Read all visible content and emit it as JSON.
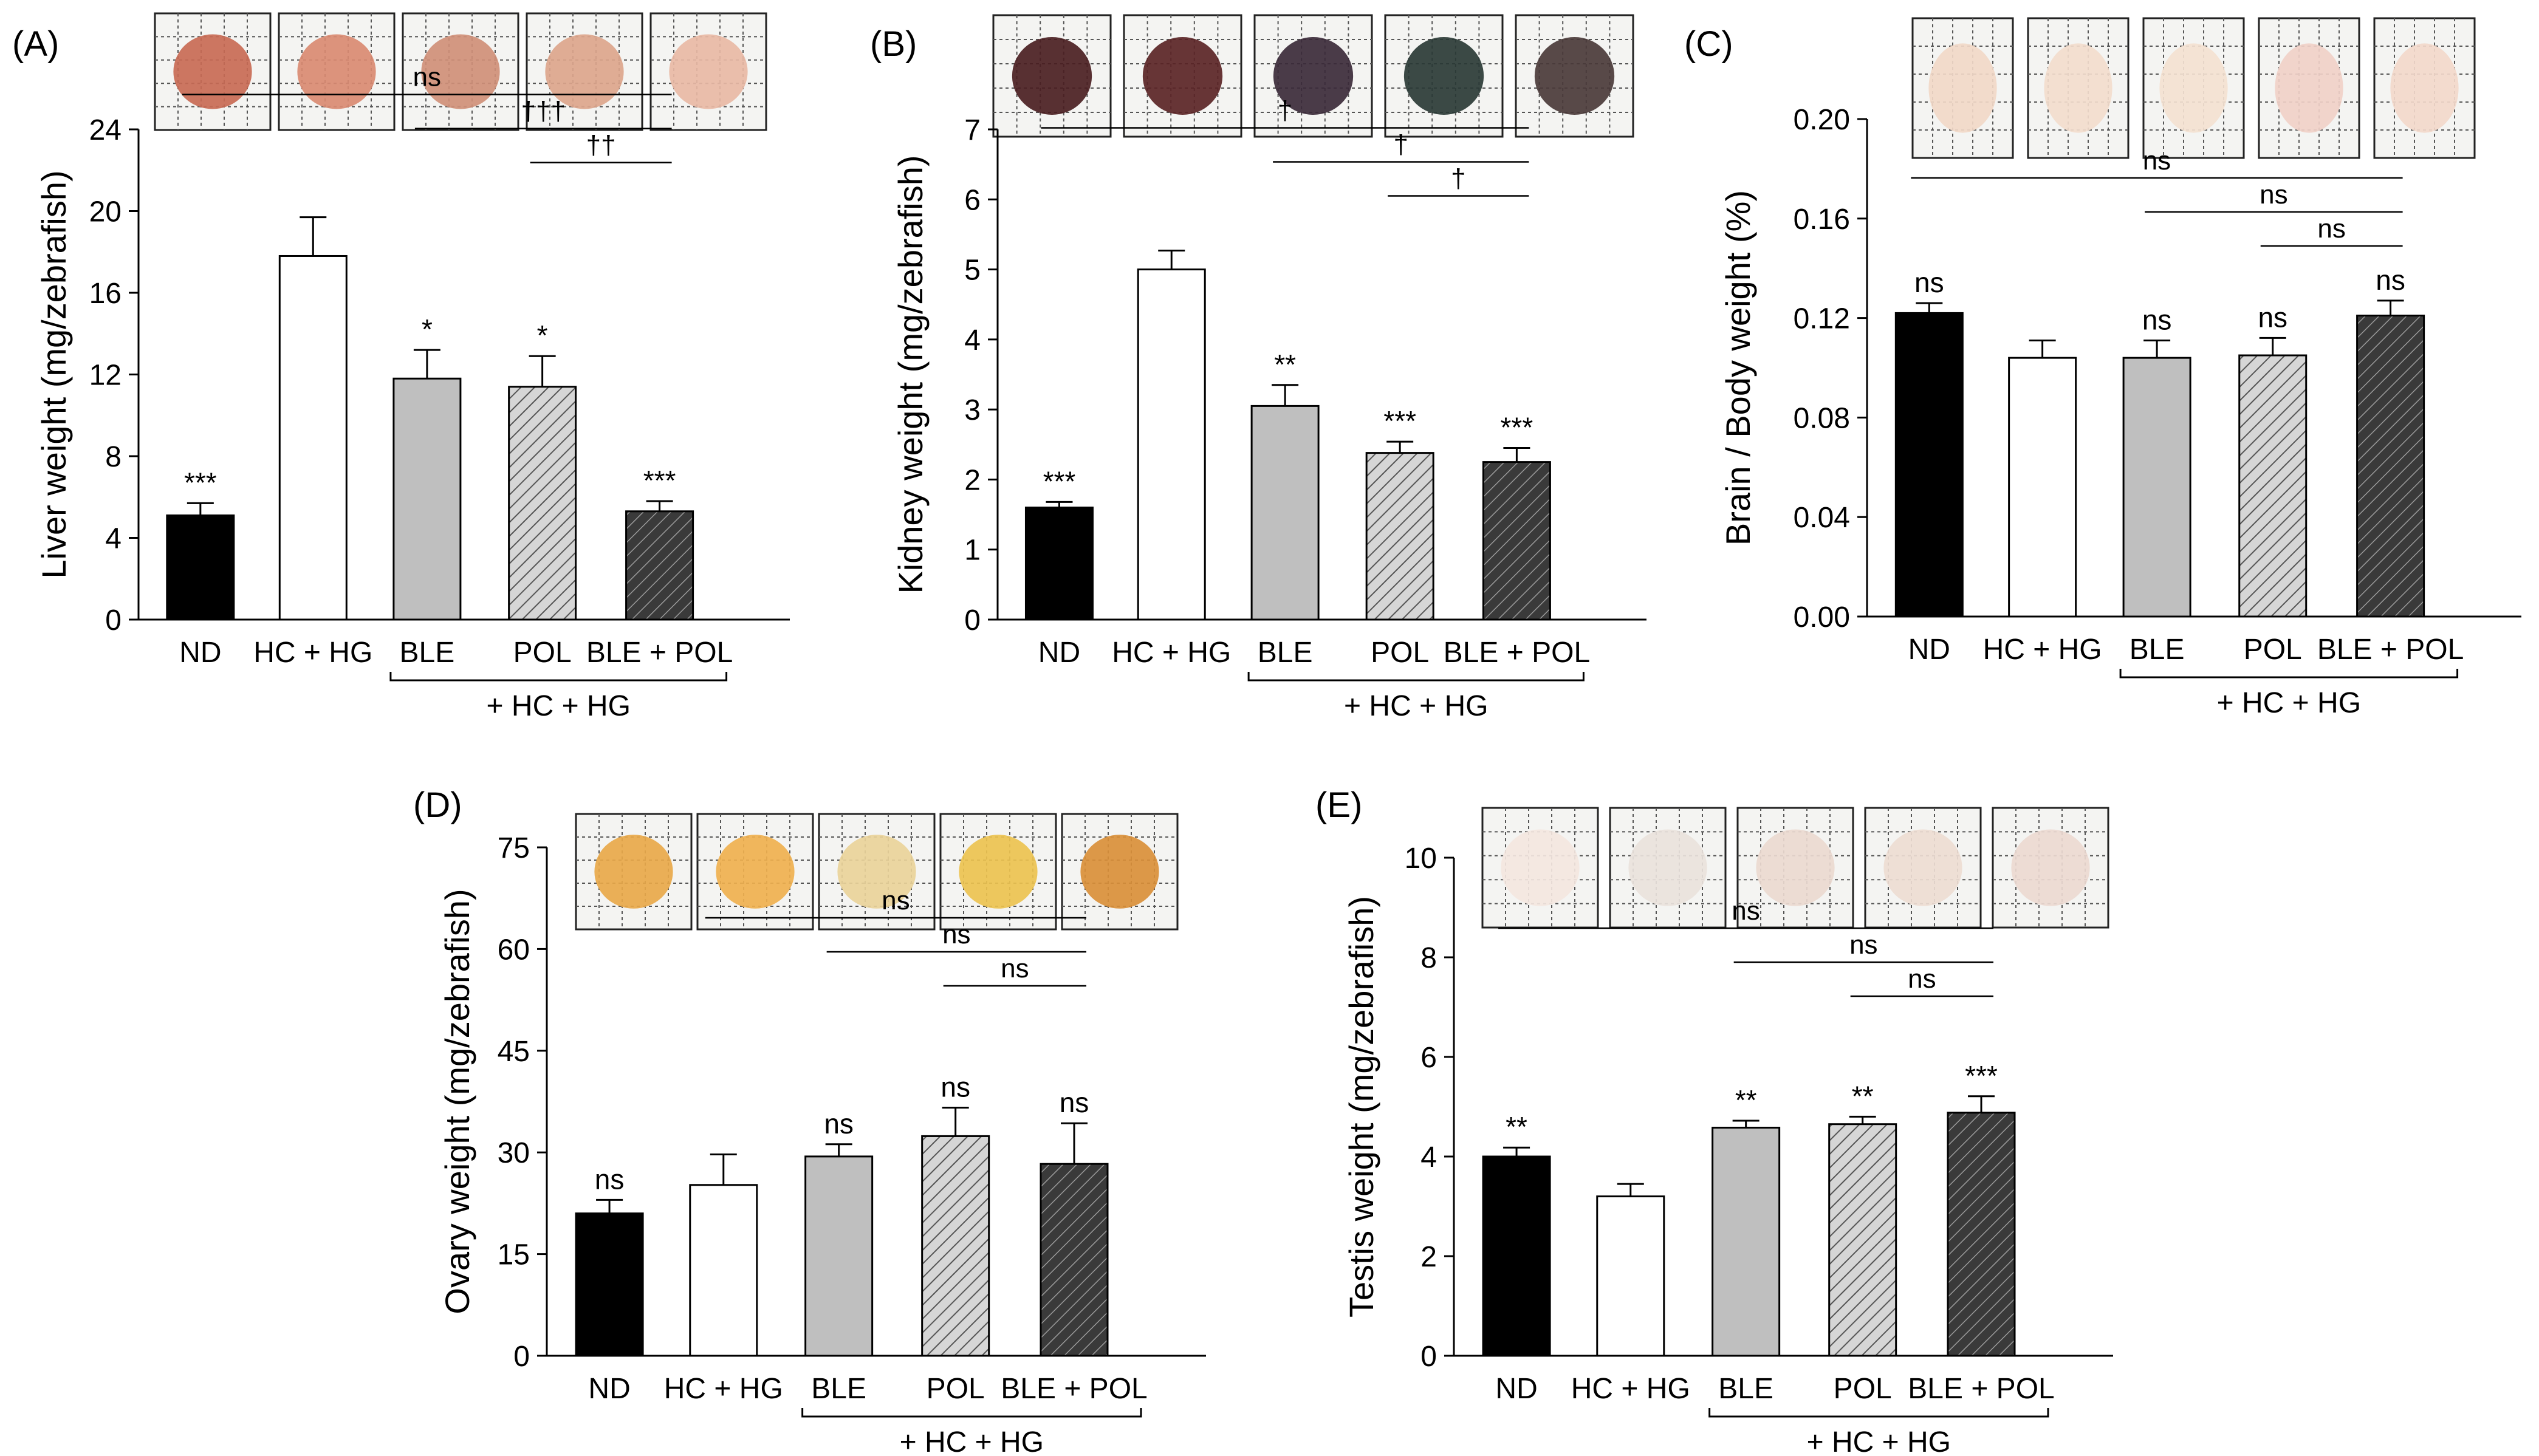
{
  "figure": {
    "colors": {
      "ND": "#000000",
      "HC + HG": "#ffffff",
      "BLE": "#bfbfbf",
      "POL": "#cfcfcf",
      "BLE + POL": "#3a3a3a"
    },
    "fills": [
      "solid",
      "solid",
      "solid",
      "hatch-light",
      "hatch-dark"
    ],
    "photo_tints": {
      "A": [
        "#c86a55",
        "#d98a72",
        "#cf8f78",
        "#dca58c",
        "#e8b9a5"
      ],
      "B": [
        "#4a1e22",
        "#5a2426",
        "#3b2a3a",
        "#2a3a36",
        "#4a3a3a"
      ],
      "C": [
        "#f1d8c8",
        "#f2dccd",
        "#f3e1d1",
        "#f0d0c8",
        "#f2d8cb"
      ],
      "D": [
        "#e8a84a",
        "#efb04f",
        "#e9d39a",
        "#ecc250",
        "#d98f3a"
      ],
      "E": [
        "#f3e6e0",
        "#e9e2dc",
        "#ead9d0",
        "#eddcd3",
        "#ecd9d1"
      ]
    }
  },
  "chart_data": [
    {
      "panel": "(A)",
      "type": "bar",
      "ylabel": "Liver weight (mg/zebrafish)",
      "categories": [
        "ND",
        "HC + HG",
        "BLE",
        "POL",
        "BLE + POL"
      ],
      "values": [
        5.1,
        17.8,
        11.8,
        11.4,
        5.3
      ],
      "errors": [
        0.6,
        1.9,
        1.4,
        1.5,
        0.5
      ],
      "bar_labels": [
        "***",
        "",
        "*",
        "*",
        "***"
      ],
      "ylim": [
        0,
        24
      ],
      "yticks": [
        "0",
        "4",
        "8",
        "12",
        "16",
        "20",
        "24"
      ],
      "group_label": "+ HC + HG",
      "comparisons": [
        {
          "from": "ND",
          "to": "BLE + POL",
          "label": "ns"
        },
        {
          "from": "BLE",
          "to": "BLE + POL",
          "label": "†††"
        },
        {
          "from": "POL",
          "to": "BLE + POL",
          "label": "††"
        }
      ]
    },
    {
      "panel": "(B)",
      "type": "bar",
      "ylabel": "Kidney weight (mg/zebrafish)",
      "categories": [
        "ND",
        "HC + HG",
        "BLE",
        "POL",
        "BLE + POL"
      ],
      "values": [
        1.6,
        5.0,
        3.05,
        2.38,
        2.25
      ],
      "errors": [
        0.08,
        0.27,
        0.3,
        0.16,
        0.2
      ],
      "bar_labels": [
        "***",
        "",
        "**",
        "***",
        "***"
      ],
      "ylim": [
        0,
        7
      ],
      "yticks": [
        "0",
        "1",
        "2",
        "3",
        "4",
        "5",
        "6",
        "7"
      ],
      "group_label": "+ HC + HG",
      "comparisons": [
        {
          "from": "ND",
          "to": "BLE + POL",
          "label": "†"
        },
        {
          "from": "BLE",
          "to": "BLE + POL",
          "label": "†"
        },
        {
          "from": "POL",
          "to": "BLE + POL",
          "label": "†"
        }
      ]
    },
    {
      "panel": "(C)",
      "type": "bar",
      "ylabel": "Brain / Body weight (%)",
      "categories": [
        "ND",
        "HC + HG",
        "BLE",
        "POL",
        "BLE + POL"
      ],
      "values": [
        0.122,
        0.104,
        0.104,
        0.105,
        0.121
      ],
      "errors": [
        0.004,
        0.007,
        0.007,
        0.007,
        0.006
      ],
      "bar_labels": [
        "ns",
        "",
        "ns",
        "ns",
        "ns"
      ],
      "ylim": [
        0,
        0.2
      ],
      "yticks": [
        "0.00",
        "0.04",
        "0.08",
        "0.12",
        "0.16",
        "0.20"
      ],
      "group_label": "+ HC + HG",
      "comparisons": [
        {
          "from": "ND",
          "to": "BLE + POL",
          "label": "ns"
        },
        {
          "from": "BLE",
          "to": "BLE + POL",
          "label": "ns"
        },
        {
          "from": "POL",
          "to": "BLE + POL",
          "label": "ns"
        }
      ]
    },
    {
      "panel": "(D)",
      "type": "bar",
      "ylabel": "Ovary weight (mg/zebrafish)",
      "categories": [
        "ND",
        "HC + HG",
        "BLE",
        "POL",
        "BLE + POL"
      ],
      "values": [
        21.0,
        25.2,
        29.4,
        32.4,
        28.3
      ],
      "errors": [
        2.0,
        4.5,
        1.8,
        4.2,
        6.0
      ],
      "bar_labels": [
        "ns",
        "",
        "ns",
        "ns",
        "ns"
      ],
      "ylim": [
        0,
        75
      ],
      "yticks": [
        "0",
        "15",
        "30",
        "45",
        "60",
        "75"
      ],
      "group_label": "+ HC + HG",
      "comparisons": [
        {
          "from": "HC + HG",
          "to": "BLE + POL",
          "label": "ns"
        },
        {
          "from": "BLE",
          "to": "BLE + POL",
          "label": "ns"
        },
        {
          "from": "POL",
          "to": "BLE + POL",
          "label": "ns"
        }
      ]
    },
    {
      "panel": "(E)",
      "type": "bar",
      "ylabel": "Testis weight (mg/zebrafish)",
      "categories": [
        "ND",
        "HC + HG",
        "BLE",
        "POL",
        "BLE + POL"
      ],
      "values": [
        4.0,
        3.2,
        4.58,
        4.65,
        4.88
      ],
      "errors": [
        0.18,
        0.25,
        0.14,
        0.15,
        0.33
      ],
      "bar_labels": [
        "**",
        "",
        "**",
        "**",
        "***"
      ],
      "ylim": [
        0,
        10
      ],
      "yticks": [
        "0",
        "2",
        "4",
        "6",
        "8",
        "10"
      ],
      "group_label": "+ HC + HG",
      "comparisons": [
        {
          "from": "ND",
          "to": "BLE + POL",
          "label": "ns"
        },
        {
          "from": "BLE",
          "to": "BLE + POL",
          "label": "ns"
        },
        {
          "from": "POL",
          "to": "BLE + POL",
          "label": "ns"
        }
      ]
    }
  ]
}
